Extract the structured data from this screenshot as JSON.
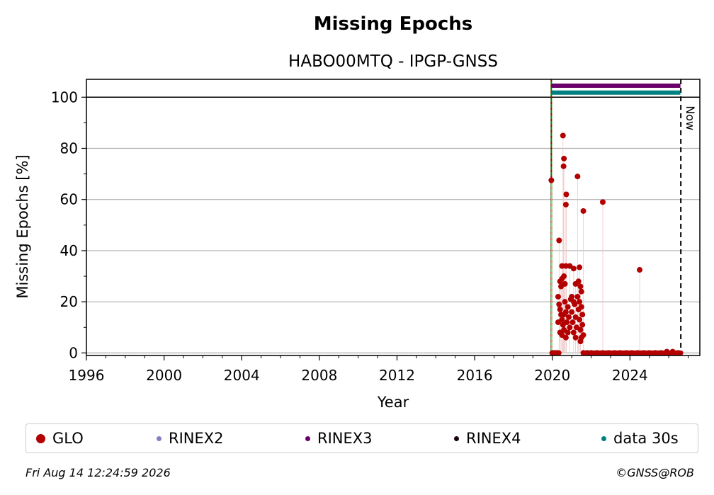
{
  "chart_data": {
    "type": "scatter",
    "title": "Missing Epochs",
    "subtitle": "HABO00MTQ - IPGP-GNSS",
    "xlabel": "Year",
    "ylabel": "Missing Epochs [%]",
    "xlim": [
      1996,
      2027.6
    ],
    "ylim": [
      -1,
      107
    ],
    "xticks": [
      "1996",
      "2000",
      "2004",
      "2008",
      "2012",
      "2016",
      "2020",
      "2024"
    ],
    "yticks": [
      "0",
      "20",
      "40",
      "60",
      "80",
      "100"
    ],
    "grid": true,
    "now_label": "Now",
    "now_year": 2026.62,
    "start_year": 2019.95,
    "legend_position": "bottom",
    "series": [
      {
        "name": "GLO",
        "color": "#b30000",
        "points": [
          [
            2019.95,
            67.5
          ],
          [
            2020.0,
            0
          ],
          [
            2020.1,
            0
          ],
          [
            2020.2,
            0
          ],
          [
            2020.3,
            0
          ],
          [
            2020.35,
            44
          ],
          [
            2020.55,
            85
          ],
          [
            2020.6,
            76
          ],
          [
            2020.58,
            73
          ],
          [
            2020.72,
            62
          ],
          [
            2020.7,
            58
          ],
          [
            2021.3,
            69
          ],
          [
            2021.6,
            55.5
          ],
          [
            2022.6,
            59
          ],
          [
            2024.5,
            32.5
          ],
          [
            2020.5,
            34
          ],
          [
            2020.7,
            34
          ],
          [
            2020.9,
            34
          ],
          [
            2021.1,
            33
          ],
          [
            2021.4,
            33.5
          ],
          [
            2020.4,
            28
          ],
          [
            2020.45,
            26
          ],
          [
            2020.5,
            29
          ],
          [
            2020.6,
            30
          ],
          [
            2020.65,
            27
          ],
          [
            2021.2,
            27
          ],
          [
            2021.35,
            28
          ],
          [
            2021.45,
            26
          ],
          [
            2021.5,
            24
          ],
          [
            2020.3,
            22
          ],
          [
            2020.35,
            19
          ],
          [
            2020.4,
            17
          ],
          [
            2020.45,
            15
          ],
          [
            2020.5,
            13
          ],
          [
            2020.55,
            11
          ],
          [
            2020.6,
            9
          ],
          [
            2020.65,
            20
          ],
          [
            2020.7,
            16
          ],
          [
            2020.75,
            12
          ],
          [
            2020.8,
            18
          ],
          [
            2020.85,
            14
          ],
          [
            2020.9,
            10
          ],
          [
            2020.95,
            21
          ],
          [
            2021.0,
            16
          ],
          [
            2021.05,
            12
          ],
          [
            2021.1,
            8
          ],
          [
            2021.15,
            19
          ],
          [
            2021.2,
            14
          ],
          [
            2021.25,
            10
          ],
          [
            2021.3,
            22
          ],
          [
            2021.35,
            17
          ],
          [
            2021.4,
            13
          ],
          [
            2021.45,
            9
          ],
          [
            2021.5,
            6
          ],
          [
            2021.55,
            11
          ],
          [
            2021.6,
            7
          ],
          [
            2020.3,
            12
          ],
          [
            2020.4,
            8
          ],
          [
            2020.5,
            7
          ],
          [
            2020.6,
            15
          ],
          [
            2020.7,
            6
          ],
          [
            2020.8,
            8
          ],
          [
            2021.0,
            22
          ],
          [
            2021.1,
            20
          ],
          [
            2021.2,
            6
          ],
          [
            2021.4,
            20
          ],
          [
            2021.5,
            18
          ],
          [
            2021.55,
            15
          ],
          [
            2021.45,
            4.5
          ],
          [
            2021.6,
            0
          ],
          [
            2021.8,
            0
          ],
          [
            2022.0,
            0
          ],
          [
            2022.3,
            0
          ],
          [
            2022.6,
            0
          ],
          [
            2022.9,
            0
          ],
          [
            2023.2,
            0
          ],
          [
            2023.5,
            0
          ],
          [
            2023.8,
            0
          ],
          [
            2024.1,
            0
          ],
          [
            2024.4,
            0
          ],
          [
            2024.7,
            0
          ],
          [
            2025.0,
            0
          ],
          [
            2025.3,
            0
          ],
          [
            2025.6,
            0
          ],
          [
            2025.9,
            0.5
          ],
          [
            2026.2,
            0.5
          ],
          [
            2026.5,
            0
          ]
        ]
      },
      {
        "name": "RINEX2",
        "color": "#8080c0",
        "points": []
      },
      {
        "name": "RINEX3",
        "color": "#6a006a",
        "points": [],
        "availability": [
          2019.95,
          2026.6
        ],
        "level": 104.5
      },
      {
        "name": "RINEX4",
        "color": "#1a0010",
        "points": []
      },
      {
        "name": "data 30s",
        "color": "#008080",
        "points": [],
        "availability": [
          2019.95,
          2026.6
        ],
        "level": 101.8
      }
    ]
  },
  "footer": {
    "timestamp": "Fri Aug 14 12:24:59 2026",
    "credit": "©GNSS@ROB"
  }
}
